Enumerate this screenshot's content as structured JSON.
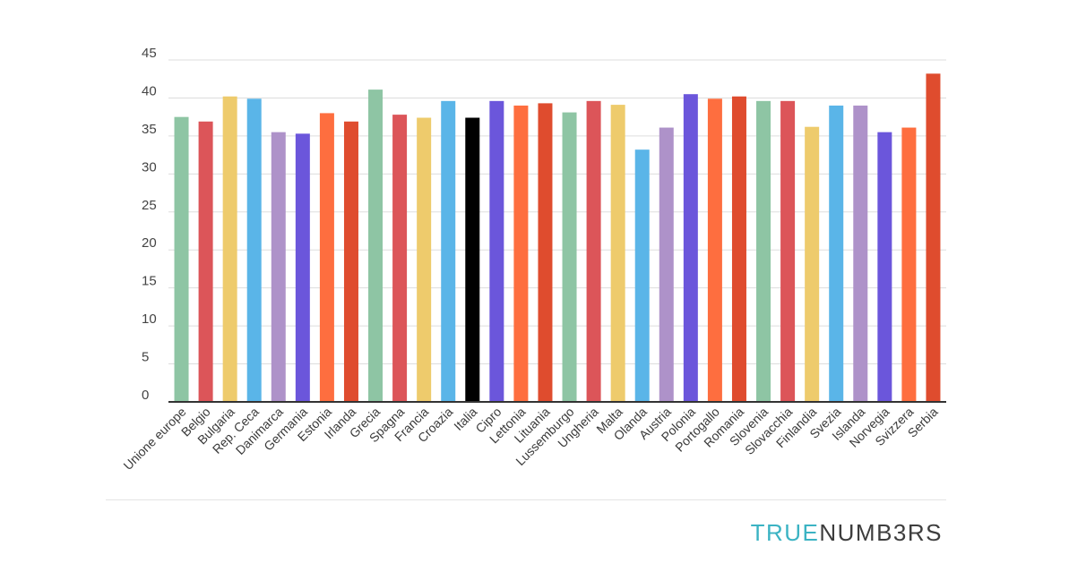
{
  "chart_data": {
    "type": "bar",
    "title": "",
    "xlabel": "",
    "ylabel": "",
    "ylim": [
      0,
      45
    ],
    "yticks": [
      0,
      5,
      10,
      15,
      20,
      25,
      30,
      35,
      40,
      45
    ],
    "ytick_labels": [
      "0",
      "5",
      "10",
      "15",
      "20",
      "25",
      "30",
      "35",
      "40",
      "45"
    ],
    "grid": true,
    "categories": [
      "Unione europe",
      "Belgio",
      "Bulgaria",
      "Rep. Ceca",
      "Danimarca",
      "Germania",
      "Estonia",
      "Irlanda",
      "Grecia",
      "Spagna",
      "Francia",
      "Croazia",
      "Italia",
      "Cipro",
      "Lettonia",
      "Lituania",
      "Lussemburgo",
      "Ungheria",
      "Malta",
      "Olanda",
      "Austria",
      "Polonia",
      "Portogallo",
      "Romania",
      "Slovenia",
      "Slovacchia",
      "Finlandia",
      "Svezia",
      "Islanda",
      "Norvegia",
      "Svizzera",
      "Serbia"
    ],
    "values": [
      37.5,
      36.9,
      40.2,
      39.9,
      35.5,
      35.3,
      38.0,
      36.9,
      41.1,
      37.8,
      37.4,
      39.6,
      37.4,
      39.6,
      39.0,
      39.3,
      38.1,
      39.6,
      39.1,
      33.2,
      36.1,
      40.5,
      39.9,
      40.2,
      39.6,
      39.6,
      36.2,
      39.0,
      39.0,
      35.5,
      36.1,
      43.2
    ],
    "colors": [
      "#8ec5a4",
      "#dc5559",
      "#eecb6c",
      "#5ab5e8",
      "#ae92c9",
      "#6b56db",
      "#fe6e3f",
      "#df4c2e",
      "#8ec5a4",
      "#dc5559",
      "#eecb6c",
      "#5ab5e8",
      "#000000",
      "#6b56db",
      "#fe6e3f",
      "#df4c2e",
      "#8ec5a4",
      "#dc5559",
      "#eecb6c",
      "#5ab5e8",
      "#ae92c9",
      "#6b56db",
      "#fe6e3f",
      "#df4c2e",
      "#8ec5a4",
      "#dc5559",
      "#eecb6c",
      "#5ab5e8",
      "#ae92c9",
      "#6b56db",
      "#fe6e3f",
      "#df4c2e"
    ],
    "gridline_color": "#dddddd",
    "baseline_color": "#333333"
  },
  "brand": {
    "part1": "TRUE",
    "part2": "NUMB3RS"
  }
}
